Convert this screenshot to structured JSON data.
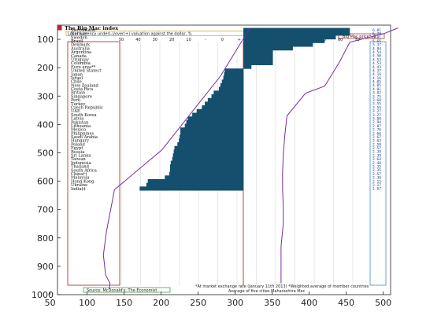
{
  "chart_data": {
    "type": "bar",
    "title": "The Big Mac index",
    "subtitle": "Local currency under(-)/over(+) valuation against the dollar, %",
    "legend_label": "Big Mac price*, $",
    "footnote_left": "Source: McDonald's; The Economist",
    "footnote_right": "*At market exchange rate (January 11th 2013)   *Weighted average of member countries",
    "footnote_right2": "Average of five cities   Maharashtra Mac",
    "x_ticks": [
      50,
      100,
      150,
      200,
      250,
      300,
      350,
      400,
      450,
      500
    ],
    "y_ticks": [
      100,
      200,
      300,
      400,
      500,
      600,
      700,
      800,
      900,
      1000
    ],
    "xlim": [
      60,
      510
    ],
    "ylim": [
      50,
      1000
    ],
    "top_ticks": [
      "50",
      "40",
      "30",
      "20",
      "10",
      "-",
      "0",
      "+",
      "10",
      "20",
      "30",
      "40",
      "50",
      "60",
      "70"
    ],
    "categories": [
      "Switzerland",
      "Norway",
      "Sweden",
      "Brazil",
      "Denmark",
      "Australia",
      "Argentina",
      "Canada",
      "Uruguay",
      "Colombia",
      "Euro area**",
      "United States†",
      "Japan",
      "Israel",
      "Chile",
      "New Zealand",
      "Costa Rica",
      "Britain",
      "Singapore",
      "Peru",
      "Turkey",
      "Czech Republic",
      "UAE",
      "South Korea",
      "Latvia",
      "Pakistan",
      "Lithuania",
      "Mexico",
      "Philippines",
      "Saudi Arabia",
      "Hungary",
      "Poland",
      "Egypt",
      "Russia",
      "Sri Lanka",
      "Taiwan",
      "Indonesia",
      "Thailand",
      "South Africa",
      "China††",
      "Malaysia",
      "Hong Kong",
      "Ukraine",
      "India‡‡"
    ],
    "y_positions": [
      67,
      80,
      93,
      106,
      119,
      132,
      145,
      158,
      171,
      184,
      197,
      210,
      223,
      236,
      249,
      262,
      275,
      288,
      301,
      314,
      327,
      340,
      353,
      366,
      379,
      392,
      405,
      418,
      431,
      444,
      457,
      470,
      483,
      496,
      509,
      522,
      535,
      548,
      561,
      574,
      587,
      600,
      613,
      626
    ],
    "bar_left": [
      455,
      455,
      436,
      421,
      405,
      378,
      351,
      351,
      351,
      351,
      322,
      286,
      285,
      284,
      282,
      280,
      278,
      271,
      268,
      263,
      259,
      255,
      248,
      242,
      236,
      234,
      232,
      226,
      226,
      225,
      224,
      222,
      218,
      217,
      216,
      215,
      213,
      212,
      212,
      211,
      205,
      182,
      180,
      171
    ],
    "price_values": [
      "6.81",
      "6.79",
      "6.01",
      "5.65",
      "5.37",
      "4.84",
      "4.54",
      "4.50",
      "4.53",
      "4.53",
      "4.43",
      "4.37",
      "4.16",
      "4.16",
      "4.05",
      "4.05",
      "4.01",
      "3.82",
      "3.75",
      "3.69",
      "3.55",
      "3.55",
      "3.27",
      "3.27",
      "3.08",
      "2.94",
      "2.87",
      "2.76",
      "2.66",
      "2.67",
      "2.63",
      "2.58",
      "2.57",
      "2.39",
      "2.39",
      "2.64",
      "2.40",
      "2.35",
      "2.35",
      "2.57",
      "2.36",
      "2.15",
      "2.17",
      "1.67"
    ],
    "line_series": {
      "name": "",
      "x": [
        520,
        501,
        455,
        441,
        421,
        395,
        370,
        367,
        365,
        364,
        364,
        365,
        365,
        362,
        362
      ],
      "y": [
        60,
        80,
        110,
        180,
        265,
        290,
        370,
        440,
        510,
        570,
        630,
        690,
        750,
        830,
        960
      ]
    },
    "line_series_2": {
      "name": "",
      "x": [
        320,
        280,
        201,
        137,
        126,
        122,
        125,
        131,
        130
      ],
      "y": [
        60,
        230,
        490,
        630,
        780,
        860,
        930,
        960,
        980
      ]
    }
  }
}
